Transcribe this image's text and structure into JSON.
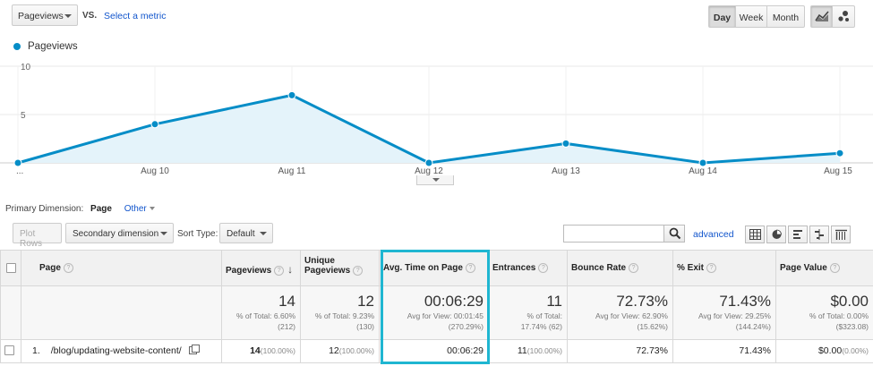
{
  "toolbar": {
    "metric": "Pageviews",
    "vs": "VS.",
    "select_metric": "Select a metric",
    "periods": [
      "Day",
      "Week",
      "Month"
    ],
    "active_period": "Day"
  },
  "legend": {
    "label": "Pageviews",
    "color": "#058dc7"
  },
  "chart_data": {
    "type": "line",
    "x": [
      "...",
      "Aug 10",
      "Aug 11",
      "Aug 12",
      "Aug 13",
      "Aug 14",
      "Aug 15"
    ],
    "x_positions": [
      0,
      1,
      2,
      3,
      4,
      5,
      6
    ],
    "series": [
      {
        "name": "Pageviews",
        "values": [
          0,
          4,
          7,
          0,
          2,
          0,
          1
        ],
        "x": [
          0,
          1,
          2,
          3,
          4,
          5,
          6
        ]
      }
    ],
    "y_ticks": [
      5,
      10
    ],
    "ylim": [
      0,
      10
    ],
    "grid": true,
    "area_fill": true,
    "title": "",
    "xlabel": "",
    "ylabel": ""
  },
  "dimension": {
    "label": "Primary Dimension:",
    "selected": "Page",
    "other": "Other"
  },
  "controls": {
    "plot_rows": "Plot Rows",
    "secondary": "Secondary dimension",
    "sort_label": "Sort Type:",
    "sort_value": "Default",
    "advanced": "advanced",
    "search_value": ""
  },
  "table": {
    "headers": {
      "page": "Page",
      "pageviews": "Pageviews",
      "unique1": "Unique",
      "unique2": "Pageviews",
      "avg_time": "Avg. Time on Page",
      "entrances": "Entrances",
      "bounce": "Bounce Rate",
      "exit": "% Exit",
      "value": "Page Value"
    },
    "totals": {
      "pageviews": {
        "big": "14",
        "sub1": "% of Total: 6.60%",
        "sub2": "(212)"
      },
      "unique": {
        "big": "12",
        "sub1": "% of Total: 9.23%",
        "sub2": "(130)"
      },
      "avg_time": {
        "big": "00:06:29",
        "sub1": "Avg for View: 00:01:45",
        "sub2": "(270.29%)"
      },
      "entrances": {
        "big": "11",
        "sub1": "% of Total:",
        "sub2": "17.74% (62)"
      },
      "bounce": {
        "big": "72.73%",
        "sub1": "Avg for View: 62.90%",
        "sub2": "(15.62%)"
      },
      "exit": {
        "big": "71.43%",
        "sub1": "Avg for View: 29.25%",
        "sub2": "(144.24%)"
      },
      "value": {
        "big": "$0.00",
        "sub1": "% of Total: 0.00%",
        "sub2": "($323.08)"
      }
    },
    "rows": [
      {
        "index": "1.",
        "page": "/blog/updating-website-content/",
        "pageviews": "14",
        "pageviews_pct": "(100.00%)",
        "unique": "12",
        "unique_pct": "(100.00%)",
        "avg_time": "00:06:29",
        "entrances": "11",
        "entrances_pct": "(100.00%)",
        "bounce": "72.73%",
        "exit": "71.43%",
        "value": "$0.00",
        "value_pct": "(0.00%)"
      }
    ]
  },
  "colors": {
    "line": "#058dc7",
    "area": "#e4f3fa",
    "highlight": "#1fb6d1",
    "link": "#1155cc"
  }
}
